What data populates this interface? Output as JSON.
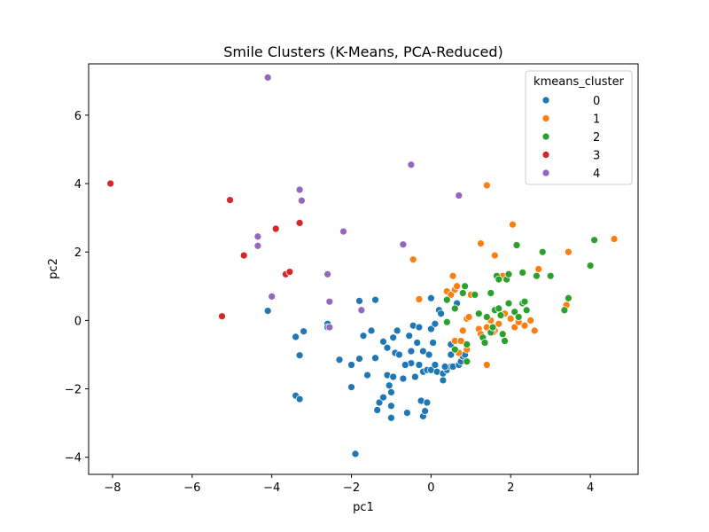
{
  "chart_data": {
    "type": "scatter",
    "title": "Smile Clusters (K-Means, PCA-Reduced)",
    "xlabel": "pc1",
    "ylabel": "pc2",
    "xlim": [
      -8.6,
      5.2
    ],
    "ylim": [
      -4.5,
      7.5
    ],
    "xticks": [
      -8,
      -6,
      -4,
      -2,
      0,
      2,
      4
    ],
    "yticks": [
      -4,
      -2,
      0,
      2,
      4,
      6
    ],
    "grid": false,
    "legend": {
      "title": "kmeans_cluster",
      "position": "top-right"
    },
    "series": [
      {
        "name": "0",
        "color": "#1f77b4",
        "points": [
          [
            -4.1,
            0.28
          ],
          [
            -3.4,
            -0.48
          ],
          [
            -3.2,
            -0.32
          ],
          [
            -3.3,
            -1.02
          ],
          [
            -3.4,
            -2.2
          ],
          [
            -3.3,
            -2.3
          ],
          [
            -2.6,
            -0.1
          ],
          [
            -2.6,
            -0.2
          ],
          [
            -2.3,
            -1.15
          ],
          [
            -2.0,
            -1.3
          ],
          [
            -2.0,
            -1.95
          ],
          [
            -1.9,
            -3.9
          ],
          [
            -1.8,
            0.57
          ],
          [
            -1.8,
            -1.12
          ],
          [
            -1.7,
            -0.45
          ],
          [
            -1.5,
            -0.3
          ],
          [
            -1.4,
            0.6
          ],
          [
            -1.4,
            -1.1
          ],
          [
            -1.3,
            -2.4
          ],
          [
            -1.35,
            -2.62
          ],
          [
            -1.2,
            -2.25
          ],
          [
            -1.2,
            -0.62
          ],
          [
            -1.1,
            -1.6
          ],
          [
            -1.05,
            -1.9
          ],
          [
            -1.0,
            -2.1
          ],
          [
            -1.0,
            -2.5
          ],
          [
            -1.0,
            -2.85
          ],
          [
            -0.95,
            -0.5
          ],
          [
            -0.9,
            -0.95
          ],
          [
            -0.85,
            -0.3
          ],
          [
            -0.8,
            -1.0
          ],
          [
            -0.7,
            -1.7
          ],
          [
            -0.6,
            -2.7
          ],
          [
            -0.55,
            -0.45
          ],
          [
            -0.5,
            -0.9
          ],
          [
            -0.5,
            -1.25
          ],
          [
            -0.45,
            -0.15
          ],
          [
            -0.4,
            -1.65
          ],
          [
            -0.35,
            -0.65
          ],
          [
            -0.3,
            -0.2
          ],
          [
            -0.3,
            -1.3
          ],
          [
            -0.25,
            -2.35
          ],
          [
            -0.2,
            -2.8
          ],
          [
            -0.2,
            -1.5
          ],
          [
            -0.2,
            -0.9
          ],
          [
            -0.15,
            -2.65
          ],
          [
            -0.1,
            -1.45
          ],
          [
            -0.05,
            -1.0
          ],
          [
            0.0,
            -1.45
          ],
          [
            0.0,
            0.65
          ],
          [
            0.0,
            -0.25
          ],
          [
            0.05,
            -0.65
          ],
          [
            0.1,
            -1.3
          ],
          [
            0.15,
            -1.5
          ],
          [
            0.2,
            0.3
          ],
          [
            0.25,
            0.2
          ],
          [
            0.3,
            -1.75
          ],
          [
            0.3,
            -1.55
          ],
          [
            0.4,
            -1.45
          ],
          [
            0.5,
            -1.35
          ],
          [
            0.5,
            -1.0
          ],
          [
            0.5,
            -0.7
          ],
          [
            0.55,
            -1.35
          ],
          [
            0.6,
            -0.6
          ],
          [
            0.7,
            -1.3
          ],
          [
            0.75,
            -1.2
          ],
          [
            0.8,
            -1.05
          ],
          [
            0.35,
            -1.35
          ],
          [
            0.1,
            -0.1
          ],
          [
            -0.1,
            -2.4
          ],
          [
            -1.6,
            -1.6
          ],
          [
            -1.1,
            -0.8
          ],
          [
            -0.65,
            -1.3
          ],
          [
            -0.95,
            -1.65
          ],
          [
            0.65,
            0.5
          ],
          [
            0.85,
            -1.0
          ]
        ]
      },
      {
        "name": "1",
        "color": "#ff7f0e",
        "points": [
          [
            -0.45,
            1.78
          ],
          [
            -0.3,
            0.62
          ],
          [
            0.4,
            0.85
          ],
          [
            0.5,
            0.75
          ],
          [
            0.55,
            1.3
          ],
          [
            0.6,
            0.9
          ],
          [
            0.65,
            1.0
          ],
          [
            0.6,
            -0.6
          ],
          [
            0.7,
            -0.95
          ],
          [
            0.75,
            -0.6
          ],
          [
            0.8,
            -0.3
          ],
          [
            0.9,
            0.05
          ],
          [
            0.9,
            -0.85
          ],
          [
            1.0,
            0.75
          ],
          [
            1.2,
            -0.25
          ],
          [
            1.25,
            -0.4
          ],
          [
            1.25,
            2.25
          ],
          [
            1.4,
            3.95
          ],
          [
            1.4,
            -1.3
          ],
          [
            1.4,
            -0.2
          ],
          [
            1.5,
            0.0
          ],
          [
            1.6,
            1.9
          ],
          [
            1.6,
            -0.3
          ],
          [
            1.7,
            -0.1
          ],
          [
            1.8,
            1.3
          ],
          [
            1.85,
            0.2
          ],
          [
            1.9,
            1.2
          ],
          [
            2.0,
            0.05
          ],
          [
            2.05,
            2.8
          ],
          [
            2.1,
            -0.2
          ],
          [
            2.2,
            -0.05
          ],
          [
            2.35,
            -0.15
          ],
          [
            2.5,
            0.0
          ],
          [
            2.6,
            -0.3
          ],
          [
            2.7,
            1.5
          ],
          [
            3.4,
            0.45
          ],
          [
            3.45,
            2.0
          ],
          [
            4.6,
            2.38
          ],
          [
            0.95,
            0.1
          ],
          [
            1.55,
            -0.35
          ]
        ]
      },
      {
        "name": "2",
        "color": "#2ca02c",
        "points": [
          [
            0.4,
            -0.05
          ],
          [
            0.4,
            0.6
          ],
          [
            0.6,
            0.35
          ],
          [
            0.8,
            0.8
          ],
          [
            0.85,
            1.0
          ],
          [
            0.6,
            -0.85
          ],
          [
            0.9,
            -0.7
          ],
          [
            0.9,
            -1.2
          ],
          [
            1.1,
            0.75
          ],
          [
            1.2,
            0.2
          ],
          [
            1.3,
            -0.5
          ],
          [
            1.35,
            -0.65
          ],
          [
            1.4,
            0.1
          ],
          [
            1.5,
            0.8
          ],
          [
            1.5,
            -0.35
          ],
          [
            1.6,
            0.3
          ],
          [
            1.65,
            1.3
          ],
          [
            1.7,
            1.2
          ],
          [
            1.7,
            0.35
          ],
          [
            1.75,
            0.15
          ],
          [
            1.8,
            -0.4
          ],
          [
            1.9,
            1.2
          ],
          [
            1.95,
            1.35
          ],
          [
            1.95,
            0.5
          ],
          [
            2.1,
            0.25
          ],
          [
            2.15,
            2.2
          ],
          [
            2.3,
            1.4
          ],
          [
            2.3,
            0.5
          ],
          [
            2.35,
            0.55
          ],
          [
            2.4,
            0.3
          ],
          [
            2.65,
            1.3
          ],
          [
            2.8,
            2.0
          ],
          [
            3.0,
            1.3
          ],
          [
            3.35,
            0.3
          ],
          [
            3.45,
            0.65
          ],
          [
            4.0,
            1.6
          ],
          [
            4.1,
            2.35
          ],
          [
            1.85,
            -0.6
          ],
          [
            2.2,
            0.1
          ],
          [
            1.55,
            -0.2
          ]
        ]
      },
      {
        "name": "3",
        "color": "#d62728",
        "points": [
          [
            -8.05,
            4.0
          ],
          [
            -5.25,
            0.12
          ],
          [
            -5.05,
            3.52
          ],
          [
            -4.7,
            1.9
          ],
          [
            -3.9,
            2.68
          ],
          [
            -3.65,
            1.35
          ],
          [
            -3.55,
            1.42
          ],
          [
            -3.3,
            2.85
          ]
        ]
      },
      {
        "name": "4",
        "color": "#9467bd",
        "points": [
          [
            -4.1,
            7.1
          ],
          [
            -4.35,
            2.45
          ],
          [
            -4.35,
            2.18
          ],
          [
            -4.0,
            0.7
          ],
          [
            -3.3,
            3.82
          ],
          [
            -3.25,
            3.5
          ],
          [
            -2.6,
            1.35
          ],
          [
            -2.55,
            0.55
          ],
          [
            -2.55,
            -0.2
          ],
          [
            -2.2,
            2.6
          ],
          [
            -1.75,
            0.3
          ],
          [
            -0.7,
            2.22
          ],
          [
            -0.5,
            4.55
          ],
          [
            0.7,
            3.65
          ]
        ]
      }
    ]
  }
}
